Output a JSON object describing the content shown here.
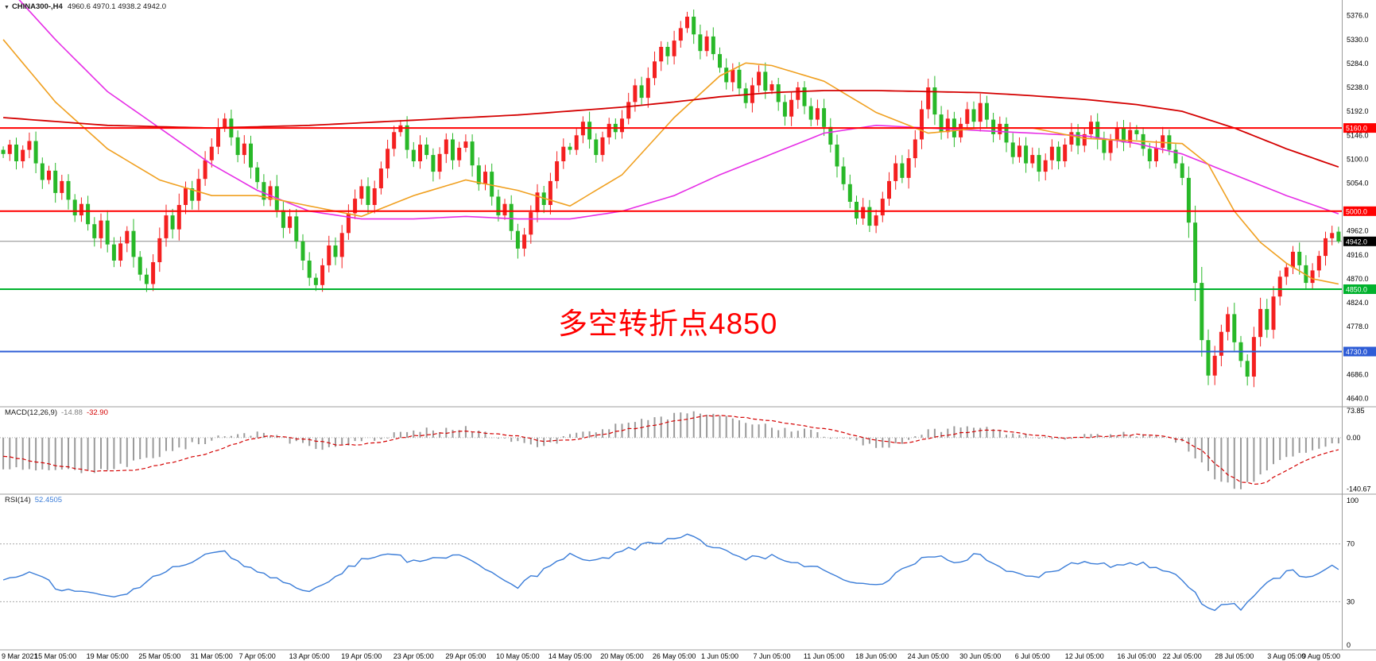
{
  "window": {
    "symbol_header": {
      "marker": "▼",
      "symbol": "CHINA300-,H4",
      "ohlc": "4960.6 4970.1 4938.2 4942.0"
    }
  },
  "annotation": {
    "text": "多空转折点4850",
    "color": "#ff0000"
  },
  "x_axis": {
    "labels": [
      "9 Mar 2021",
      "15 Mar 05:00",
      "19 Mar 05:00",
      "25 Mar 05:00",
      "31 Mar 05:00",
      "7 Apr 05:00",
      "13 Apr 05:00",
      "19 Apr 05:00",
      "23 Apr 05:00",
      "29 Apr 05:00",
      "10 May 05:00",
      "14 May 05:00",
      "20 May 05:00",
      "26 May 05:00",
      "1 Jun 05:00",
      "7 Jun 05:00",
      "11 Jun 05:00",
      "18 Jun 05:00",
      "24 Jun 05:00",
      "30 Jun 05:00",
      "6 Jul 05:00",
      "12 Jul 05:00",
      "16 Jul 05:00",
      "22 Jul 05:00",
      "28 Jul 05:00",
      "3 Aug 05:00",
      "9 Aug 05:00"
    ],
    "indices": [
      0,
      8,
      16,
      24,
      32,
      39,
      47,
      55,
      63,
      71,
      79,
      87,
      95,
      103,
      110,
      118,
      126,
      134,
      142,
      150,
      158,
      166,
      174,
      181,
      189,
      197,
      205
    ]
  },
  "chart_data": [
    {
      "type": "candlestick",
      "title": "CHINA300- H4",
      "open": 4960.6,
      "high": 4970.1,
      "low": 4938.2,
      "close": 4942.0,
      "ylim": [
        4630,
        5400
      ],
      "y_ticks": [
        5376.0,
        5330.0,
        5284.0,
        5238.0,
        5192.0,
        5146.0,
        5100.0,
        5054.0,
        4962.0,
        4916.0,
        4870.0,
        4824.0,
        4778.0,
        4686.0,
        4640.0
      ],
      "up_color": "#f42020",
      "down_color": "#28b828",
      "hlines": [
        {
          "value": 5160.0,
          "label": "5160.0",
          "color": "#ff0000"
        },
        {
          "value": 5000.0,
          "label": "5000.0",
          "color": "#ff0000"
        },
        {
          "value": 4850.0,
          "label": "4850.0",
          "color": "#00b22d"
        },
        {
          "value": 4730.0,
          "label": "4730.0",
          "color": "#2e5cd6"
        }
      ],
      "current_price": {
        "value": 4942.0,
        "label": "4942.0",
        "bg": "#000000",
        "fg": "#ffffff"
      },
      "first_open": 5118,
      "closes": [
        5110,
        5128,
        5096,
        5118,
        5135,
        5092,
        5060,
        5078,
        5035,
        5058,
        5022,
        4992,
        5014,
        4975,
        4948,
        4982,
        4936,
        4905,
        4938,
        4962,
        4912,
        4878,
        4860,
        4902,
        4948,
        4992,
        4965,
        5012,
        5044,
        5020,
        5062,
        5098,
        5124,
        5160,
        5178,
        5142,
        5108,
        5130,
        5084,
        5056,
        5022,
        5048,
        5002,
        4968,
        4990,
        4942,
        4905,
        4872,
        4858,
        4896,
        4934,
        4912,
        4958,
        4996,
        5024,
        5048,
        5012,
        5044,
        5082,
        5120,
        5152,
        5165,
        5118,
        5096,
        5128,
        5108,
        5076,
        5110,
        5138,
        5098,
        5122,
        5134,
        5088,
        5052,
        5076,
        5028,
        4992,
        5014,
        4962,
        4928,
        4955,
        4998,
        5036,
        5012,
        5058,
        5096,
        5124,
        5118,
        5146,
        5172,
        5138,
        5108,
        5142,
        5168,
        5152,
        5178,
        5210,
        5242,
        5218,
        5256,
        5288,
        5316,
        5298,
        5328,
        5352,
        5374,
        5340,
        5308,
        5336,
        5302,
        5276,
        5248,
        5272,
        5236,
        5208,
        5242,
        5268,
        5232,
        5244,
        5210,
        5182,
        5214,
        5238,
        5202,
        5176,
        5198,
        5162,
        5128,
        5086,
        5052,
        5018,
        4986,
        5008,
        4972,
        4992,
        5024,
        5058,
        5092,
        5064,
        5102,
        5138,
        5196,
        5238,
        5186,
        5152,
        5178,
        5142,
        5168,
        5196,
        5172,
        5208,
        5176,
        5148,
        5168,
        5132,
        5104,
        5126,
        5092,
        5108,
        5076,
        5098,
        5124,
        5096,
        5128,
        5152,
        5126,
        5148,
        5172,
        5138,
        5112,
        5136,
        5160,
        5132,
        5156,
        5148,
        5120,
        5096,
        5122,
        5146,
        5118,
        5092,
        5064,
        4978,
        4862,
        4752,
        4684,
        4722,
        4768,
        4802,
        4748,
        4712,
        4682,
        4758,
        4812,
        4772,
        4836,
        4874,
        4892,
        4922,
        4896,
        4862,
        4886,
        4914,
        4948,
        4958,
        4942
      ],
      "last_ohlc": [
        4960.6,
        4970.1,
        4938.2,
        4942.0
      ],
      "ma_lines": [
        {
          "name": "ma-long-magenta",
          "color": "#e62ee6",
          "width": 1.6,
          "anchors": [
            [
              0,
              5440
            ],
            [
              8,
              5330
            ],
            [
              16,
              5230
            ],
            [
              24,
              5160
            ],
            [
              32,
              5090
            ],
            [
              39,
              5040
            ],
            [
              47,
              5000
            ],
            [
              55,
              4985
            ],
            [
              63,
              4985
            ],
            [
              71,
              4990
            ],
            [
              79,
              4985
            ],
            [
              87,
              4985
            ],
            [
              95,
              5000
            ],
            [
              103,
              5030
            ],
            [
              110,
              5070
            ],
            [
              118,
              5110
            ],
            [
              126,
              5150
            ],
            [
              134,
              5165
            ],
            [
              142,
              5160
            ],
            [
              150,
              5155
            ],
            [
              158,
              5150
            ],
            [
              166,
              5145
            ],
            [
              174,
              5130
            ],
            [
              181,
              5110
            ],
            [
              189,
              5070
            ],
            [
              197,
              5030
            ],
            [
              205,
              4995
            ]
          ]
        },
        {
          "name": "ma-mid-orange",
          "color": "#f0a020",
          "width": 1.6,
          "anchors": [
            [
              0,
              5330
            ],
            [
              8,
              5210
            ],
            [
              16,
              5120
            ],
            [
              24,
              5060
            ],
            [
              32,
              5030
            ],
            [
              39,
              5030
            ],
            [
              47,
              5010
            ],
            [
              55,
              4990
            ],
            [
              63,
              5030
            ],
            [
              71,
              5060
            ],
            [
              79,
              5040
            ],
            [
              87,
              5010
            ],
            [
              95,
              5070
            ],
            [
              103,
              5180
            ],
            [
              110,
              5260
            ],
            [
              114,
              5285
            ],
            [
              118,
              5280
            ],
            [
              126,
              5250
            ],
            [
              134,
              5190
            ],
            [
              142,
              5150
            ],
            [
              150,
              5160
            ],
            [
              158,
              5160
            ],
            [
              166,
              5140
            ],
            [
              174,
              5135
            ],
            [
              181,
              5130
            ],
            [
              185,
              5090
            ],
            [
              189,
              5000
            ],
            [
              193,
              4940
            ],
            [
              197,
              4900
            ],
            [
              201,
              4870
            ],
            [
              205,
              4860
            ]
          ]
        },
        {
          "name": "ma-slow-red",
          "color": "#d40000",
          "width": 1.8,
          "anchors": [
            [
              0,
              5180
            ],
            [
              16,
              5165
            ],
            [
              32,
              5160
            ],
            [
              47,
              5165
            ],
            [
              63,
              5175
            ],
            [
              79,
              5185
            ],
            [
              95,
              5200
            ],
            [
              103,
              5210
            ],
            [
              110,
              5220
            ],
            [
              118,
              5228
            ],
            [
              126,
              5232
            ],
            [
              134,
              5232
            ],
            [
              142,
              5230
            ],
            [
              150,
              5228
            ],
            [
              158,
              5222
            ],
            [
              166,
              5215
            ],
            [
              174,
              5205
            ],
            [
              181,
              5192
            ],
            [
              189,
              5160
            ],
            [
              197,
              5120
            ],
            [
              205,
              5085
            ]
          ]
        }
      ]
    },
    {
      "type": "macd_histogram",
      "label": "MACD(12,26,9)",
      "value_main": "-14.88",
      "value_signal": "-32.90",
      "ylim": [
        -150,
        80
      ],
      "y_ticks": [
        [
          73.85,
          "73.85"
        ],
        [
          0,
          "0.00"
        ],
        [
          -140.67,
          "-140.67"
        ]
      ],
      "hist_color": "#9a9a9a",
      "signal_color": "#d40000",
      "hist_anchors": [
        [
          0,
          -85
        ],
        [
          8,
          -95
        ],
        [
          14,
          -90
        ],
        [
          20,
          -70
        ],
        [
          24,
          -45
        ],
        [
          32,
          -5
        ],
        [
          36,
          15
        ],
        [
          40,
          10
        ],
        [
          47,
          -25
        ],
        [
          51,
          -30
        ],
        [
          55,
          -10
        ],
        [
          63,
          20
        ],
        [
          71,
          25
        ],
        [
          79,
          -15
        ],
        [
          83,
          -25
        ],
        [
          87,
          5
        ],
        [
          95,
          35
        ],
        [
          103,
          60
        ],
        [
          107,
          68
        ],
        [
          110,
          60
        ],
        [
          114,
          45
        ],
        [
          118,
          30
        ],
        [
          126,
          10
        ],
        [
          130,
          -10
        ],
        [
          134,
          -25
        ],
        [
          138,
          -15
        ],
        [
          142,
          15
        ],
        [
          146,
          25
        ],
        [
          150,
          28
        ],
        [
          154,
          15
        ],
        [
          158,
          0
        ],
        [
          162,
          -5
        ],
        [
          166,
          5
        ],
        [
          170,
          10
        ],
        [
          174,
          8
        ],
        [
          178,
          0
        ],
        [
          181,
          -15
        ],
        [
          184,
          -70
        ],
        [
          186,
          -110
        ],
        [
          188,
          -130
        ],
        [
          190,
          -135
        ],
        [
          192,
          -120
        ],
        [
          194,
          -90
        ],
        [
          196,
          -60
        ],
        [
          198,
          -45
        ],
        [
          200,
          -40
        ],
        [
          202,
          -30
        ],
        [
          204,
          -17
        ],
        [
          205,
          -14.88
        ]
      ],
      "signal_anchors": [
        [
          0,
          -50
        ],
        [
          8,
          -75
        ],
        [
          14,
          -92
        ],
        [
          20,
          -88
        ],
        [
          24,
          -75
        ],
        [
          32,
          -40
        ],
        [
          36,
          -15
        ],
        [
          40,
          5
        ],
        [
          47,
          -5
        ],
        [
          51,
          -18
        ],
        [
          55,
          -20
        ],
        [
          63,
          5
        ],
        [
          71,
          18
        ],
        [
          79,
          5
        ],
        [
          83,
          -10
        ],
        [
          87,
          -8
        ],
        [
          95,
          20
        ],
        [
          103,
          45
        ],
        [
          107,
          58
        ],
        [
          110,
          62
        ],
        [
          114,
          55
        ],
        [
          118,
          45
        ],
        [
          126,
          25
        ],
        [
          130,
          8
        ],
        [
          134,
          -8
        ],
        [
          138,
          -15
        ],
        [
          142,
          -2
        ],
        [
          146,
          10
        ],
        [
          150,
          20
        ],
        [
          154,
          18
        ],
        [
          158,
          8
        ],
        [
          162,
          0
        ],
        [
          166,
          0
        ],
        [
          170,
          5
        ],
        [
          174,
          8
        ],
        [
          178,
          4
        ],
        [
          181,
          -5
        ],
        [
          184,
          -35
        ],
        [
          186,
          -70
        ],
        [
          188,
          -100
        ],
        [
          190,
          -120
        ],
        [
          192,
          -128
        ],
        [
          194,
          -120
        ],
        [
          196,
          -100
        ],
        [
          198,
          -80
        ],
        [
          200,
          -62
        ],
        [
          202,
          -48
        ],
        [
          204,
          -37
        ],
        [
          205,
          -32.9
        ]
      ]
    },
    {
      "type": "line",
      "label": "RSI(14)",
      "value": "52.4505",
      "ylim": [
        0,
        100
      ],
      "levels": [
        70,
        30
      ],
      "y_ticks": [
        [
          100,
          "100"
        ],
        [
          70,
          "70"
        ],
        [
          30,
          "30"
        ],
        [
          0,
          "0"
        ]
      ],
      "color": "#3b7dd8",
      "anchors": [
        [
          0,
          45
        ],
        [
          4,
          52
        ],
        [
          8,
          40
        ],
        [
          12,
          36
        ],
        [
          16,
          33
        ],
        [
          20,
          38
        ],
        [
          24,
          50
        ],
        [
          28,
          55
        ],
        [
          32,
          63
        ],
        [
          34,
          66
        ],
        [
          36,
          58
        ],
        [
          39,
          52
        ],
        [
          43,
          44
        ],
        [
          47,
          37
        ],
        [
          50,
          45
        ],
        [
          55,
          58
        ],
        [
          60,
          63
        ],
        [
          63,
          57
        ],
        [
          67,
          60
        ],
        [
          71,
          62
        ],
        [
          75,
          50
        ],
        [
          79,
          41
        ],
        [
          83,
          52
        ],
        [
          87,
          62
        ],
        [
          91,
          58
        ],
        [
          95,
          65
        ],
        [
          99,
          70
        ],
        [
          103,
          74
        ],
        [
          106,
          76
        ],
        [
          108,
          70
        ],
        [
          110,
          66
        ],
        [
          114,
          60
        ],
        [
          118,
          62
        ],
        [
          122,
          55
        ],
        [
          126,
          52
        ],
        [
          130,
          44
        ],
        [
          134,
          40
        ],
        [
          138,
          52
        ],
        [
          142,
          62
        ],
        [
          146,
          58
        ],
        [
          150,
          63
        ],
        [
          154,
          52
        ],
        [
          158,
          46
        ],
        [
          162,
          52
        ],
        [
          166,
          58
        ],
        [
          170,
          54
        ],
        [
          174,
          57
        ],
        [
          178,
          52
        ],
        [
          181,
          45
        ],
        [
          184,
          30
        ],
        [
          186,
          24
        ],
        [
          188,
          28
        ],
        [
          190,
          26
        ],
        [
          192,
          35
        ],
        [
          194,
          42
        ],
        [
          196,
          48
        ],
        [
          198,
          52
        ],
        [
          200,
          46
        ],
        [
          202,
          50
        ],
        [
          204,
          55
        ],
        [
          205,
          52.45
        ]
      ]
    }
  ]
}
